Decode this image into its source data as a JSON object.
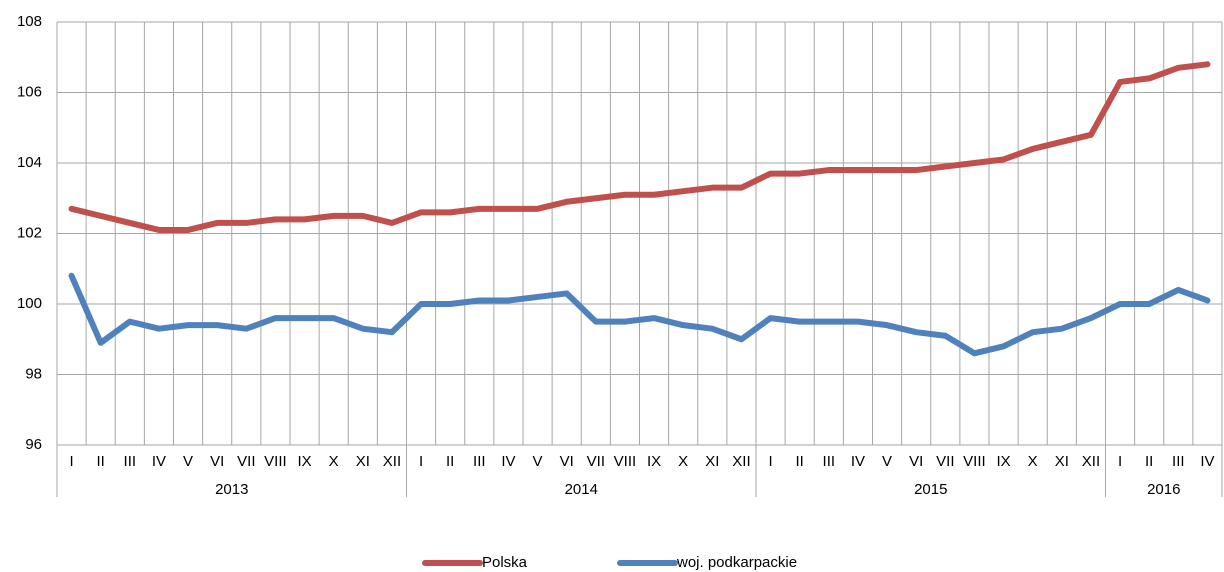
{
  "chart_data": {
    "type": "line",
    "categories": [
      "I",
      "II",
      "III",
      "IV",
      "V",
      "VI",
      "VII",
      "VIII",
      "IX",
      "X",
      "XI",
      "XII",
      "I",
      "II",
      "III",
      "IV",
      "V",
      "VI",
      "VII",
      "VIII",
      "IX",
      "X",
      "XI",
      "XII",
      "I",
      "II",
      "III",
      "IV",
      "V",
      "VI",
      "VII",
      "VIII",
      "IX",
      "X",
      "XI",
      "XII",
      "I",
      "II",
      "III",
      "IV"
    ],
    "years": [
      "2013",
      "2014",
      "2015",
      "2016"
    ],
    "series": [
      {
        "name": "Polska",
        "color": "#c0504d",
        "values": [
          102.7,
          102.5,
          102.3,
          102.1,
          102.1,
          102.3,
          102.3,
          102.4,
          102.4,
          102.5,
          102.5,
          102.3,
          102.6,
          102.6,
          102.7,
          102.7,
          102.7,
          102.9,
          103.0,
          103.1,
          103.1,
          103.2,
          103.3,
          103.3,
          103.7,
          103.7,
          103.8,
          103.8,
          103.8,
          103.8,
          103.9,
          104.0,
          104.1,
          104.4,
          104.6,
          104.8,
          106.3,
          106.4,
          106.7,
          106.8
        ]
      },
      {
        "name": "woj. podkarpackie",
        "color": "#4f81bd",
        "values": [
          100.8,
          98.9,
          99.5,
          99.3,
          99.4,
          99.4,
          99.3,
          99.6,
          99.6,
          99.6,
          99.3,
          99.2,
          100.0,
          100.0,
          100.1,
          100.1,
          100.2,
          100.3,
          99.5,
          99.5,
          99.6,
          99.4,
          99.3,
          99.0,
          99.6,
          99.5,
          99.5,
          99.5,
          99.4,
          99.2,
          99.1,
          98.6,
          98.8,
          99.2,
          99.3,
          99.6,
          100.0,
          100.0,
          100.4,
          100.1
        ]
      }
    ],
    "ylim": [
      96,
      108
    ],
    "yticks": [
      96,
      98,
      100,
      102,
      104,
      106,
      108
    ],
    "grid": true,
    "legend": "bottom"
  }
}
